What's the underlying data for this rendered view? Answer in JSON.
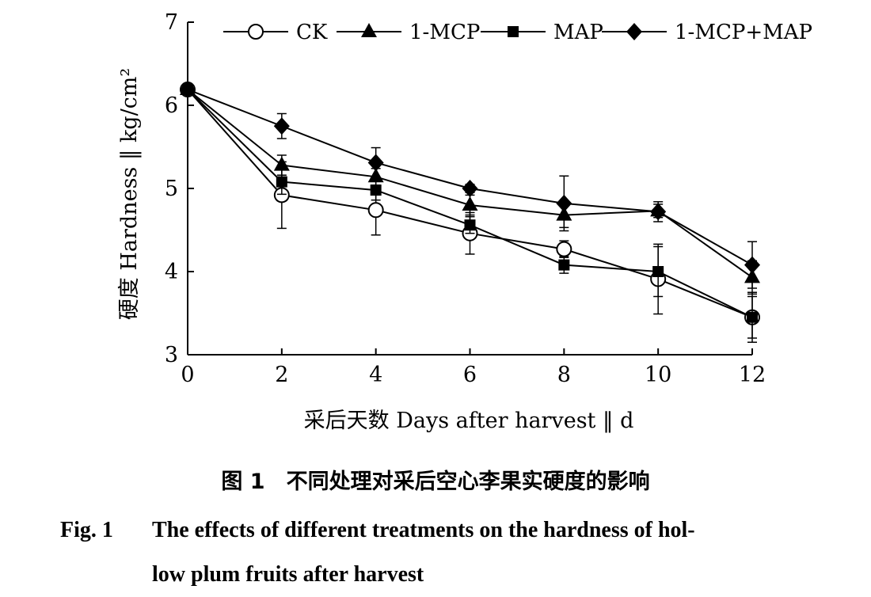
{
  "chart_data": {
    "type": "line",
    "x": [
      0,
      2,
      4,
      6,
      8,
      10,
      12
    ],
    "xlabel": "采后天数 Days after harvest ‖ d",
    "ylabel": "硬度 Hardness ‖ kg/cm²",
    "xlim": [
      0,
      12
    ],
    "ylim": [
      3,
      7
    ],
    "xticks": [
      "0",
      "2",
      "4",
      "6",
      "8",
      "10",
      "12"
    ],
    "yticks": [
      "3",
      "4",
      "5",
      "6",
      "7"
    ],
    "grid": false,
    "legend_position": "top",
    "series": [
      {
        "name": "CK",
        "marker": "open-circle",
        "values": [
          6.19,
          4.92,
          4.74,
          4.46,
          4.27,
          3.91,
          3.45
        ],
        "errors": [
          0.03,
          0.4,
          0.3,
          0.25,
          0.1,
          0.42,
          0.3
        ]
      },
      {
        "name": "1-MCP",
        "marker": "filled-triangle",
        "values": [
          6.19,
          5.28,
          5.14,
          4.8,
          4.68,
          4.73,
          3.93
        ],
        "errors": [
          0.03,
          0.12,
          0.1,
          0.12,
          0.15,
          0.08,
          0.2
        ]
      },
      {
        "name": "MAP",
        "marker": "filled-square",
        "values": [
          6.19,
          5.08,
          4.98,
          4.56,
          4.08,
          4.0,
          3.45
        ],
        "errors": [
          0.03,
          0.15,
          0.12,
          0.1,
          0.1,
          0.3,
          0.25
        ]
      },
      {
        "name": "1-MCP+MAP",
        "marker": "filled-diamond",
        "values": [
          6.19,
          5.75,
          5.31,
          5.0,
          4.82,
          4.72,
          4.08
        ],
        "errors": [
          0.03,
          0.15,
          0.18,
          0.05,
          0.33,
          0.12,
          0.28
        ]
      }
    ]
  },
  "caption": {
    "cn": "图 1　不同处理对采后空心李果实硬度的影响",
    "en_label": "Fig. 1",
    "en_line1": "The effects of different treatments on the hardness of hol-",
    "en_line2": "low plum fruits after harvest"
  }
}
